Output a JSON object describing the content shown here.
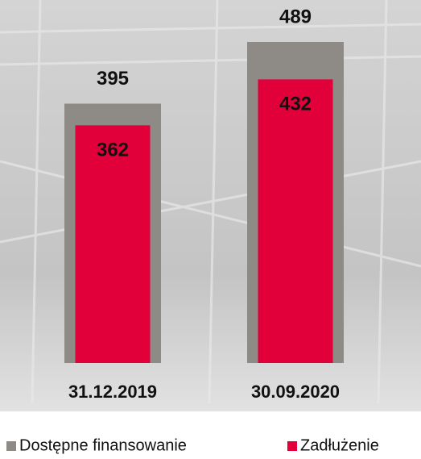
{
  "chart_data": {
    "type": "overlap-bar",
    "categories": [
      "31.12.2019",
      "30.09.2020"
    ],
    "series": [
      {
        "name": "Dostępne finansowanie",
        "color": "#8e8b86",
        "values": [
          395,
          489
        ]
      },
      {
        "name": "Zadłużenie",
        "color": "#e2003a",
        "values": [
          362,
          432
        ]
      }
    ]
  }
}
